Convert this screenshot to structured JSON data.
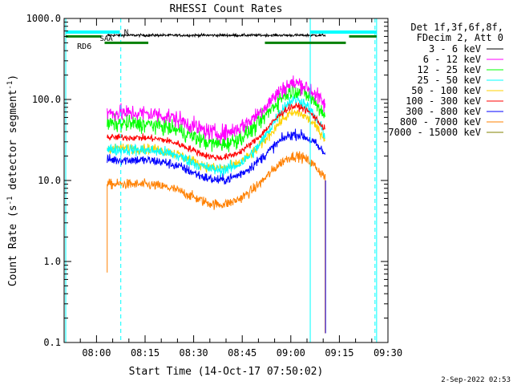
{
  "chart_data": {
    "type": "line",
    "title": "RHESSI Count Rates",
    "xlabel": "Start Time (14-Oct-17 07:50:02)",
    "ylabel": "Count Rate (s⁻¹ detector segment⁻¹)",
    "ylabel_parts": {
      "pre": "Count Rate (s",
      "sup1": "-1",
      "mid": " detector segment",
      "sup2": "-1",
      "post": ")"
    },
    "xlim_minutes": [
      -10,
      90
    ],
    "ylim": [
      0.1,
      1000
    ],
    "yscale": "log",
    "x_ticks": [
      {
        "t": 0,
        "label": "08:00"
      },
      {
        "t": 15,
        "label": "08:15"
      },
      {
        "t": 30,
        "label": "08:30"
      },
      {
        "t": 45,
        "label": "08:45"
      },
      {
        "t": 60,
        "label": "09:00"
      },
      {
        "t": 75,
        "label": "09:15"
      },
      {
        "t": 90,
        "label": "09:30"
      }
    ],
    "y_ticks": [
      {
        "v": 0.1,
        "label": "0.1"
      },
      {
        "v": 1,
        "label": "1.0"
      },
      {
        "v": 10,
        "label": "10.0"
      },
      {
        "v": 100,
        "label": "100.0"
      },
      {
        "v": 1000,
        "label": "1000.0"
      }
    ],
    "legend_header": [
      "Det 1f,3f,6f,8f,",
      "FDecim 2, Att 0"
    ],
    "series": [
      {
        "name": "3 - 6 keV",
        "color": "#000000",
        "base": 620,
        "peak": 620,
        "noise": 0.015
      },
      {
        "name": "6 - 12 keV",
        "color": "#ff00ff",
        "base": 68,
        "peak": 158,
        "noise": 0.1
      },
      {
        "name": "12 - 25 keV",
        "color": "#00ff00",
        "base": 50,
        "peak": 130,
        "noise": 0.1
      },
      {
        "name": "25 - 50 keV",
        "color": "#00ffff",
        "base": 24,
        "peak": 100,
        "noise": 0.07
      },
      {
        "name": "50 - 100 keV",
        "color": "#ffd200",
        "base": 25,
        "peak": 68,
        "noise": 0.06
      },
      {
        "name": "100 - 300 keV",
        "color": "#ff0000",
        "base": 34,
        "peak": 82,
        "noise": 0.04
      },
      {
        "name": "300 - 800 keV",
        "color": "#0000ff",
        "base": 18,
        "peak": 37,
        "noise": 0.06
      },
      {
        "name": "800 - 7000 keV",
        "color": "#ff8000",
        "base": 9,
        "peak": 20,
        "noise": 0.06
      },
      {
        "name": "7000 - 15000 keV",
        "color": "#808000",
        "base": 0,
        "peak": 0,
        "noise": 0
      }
    ],
    "data_interval_minutes": [
      3.3,
      70.6
    ],
    "dip_minutes": 38,
    "peak_minutes": 61.5,
    "drop_values": {
      "8_start": 0.73,
      "8_end_low": 0.13
    },
    "annotations": {
      "saa_label": "N",
      "saa_label2": "SAA",
      "rd6_label": "RD6",
      "vertical_lines_solid": [
        -9.5,
        66,
        86.5
      ],
      "vertical_lines_dashed": [
        7.5,
        86
      ],
      "cyan_bars": [
        {
          "start": -9.5,
          "end": 7.2
        },
        {
          "start": 66,
          "end": 86.5
        }
      ],
      "green_bars": [
        {
          "start": -9.5,
          "end": 1.5,
          "value": 600
        },
        {
          "start": 2.5,
          "end": 16,
          "value": 500
        },
        {
          "start": 52,
          "end": 77,
          "value": 500
        },
        {
          "start": 78,
          "end": 86.5,
          "value": 600
        }
      ]
    },
    "timestamp": "2-Sep-2022 02:53"
  }
}
